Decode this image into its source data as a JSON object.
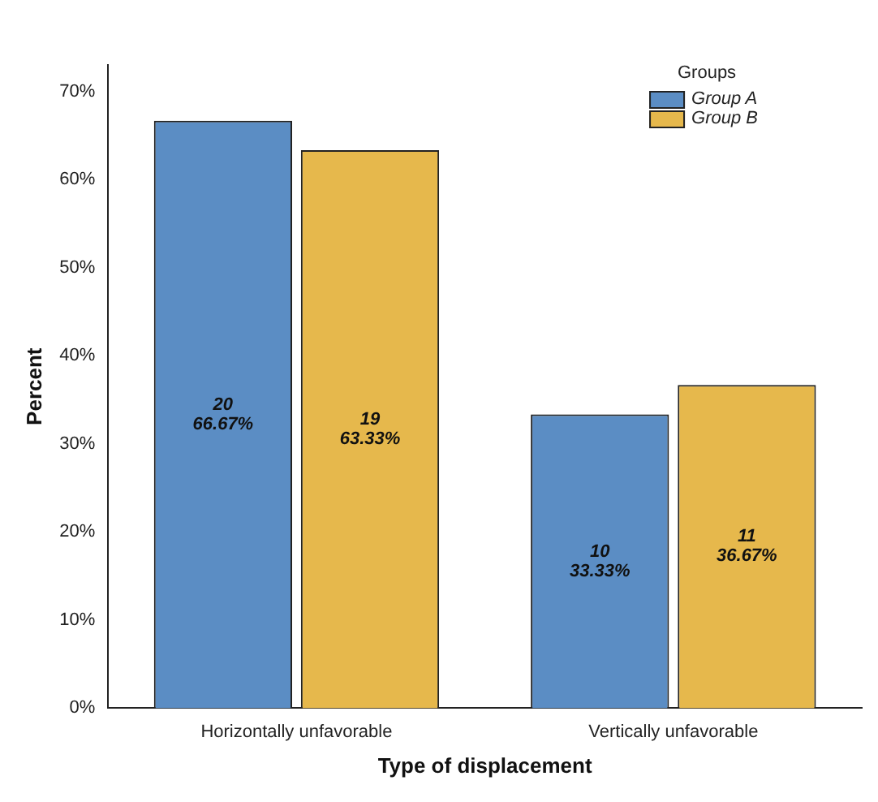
{
  "chart_data": {
    "type": "bar",
    "xlabel": "Type of displacement",
    "ylabel": "Percent",
    "legend_title": "Groups",
    "legend": "top right",
    "categories": [
      "Horizontally unfavorable",
      "Vertically unfavorable"
    ],
    "series": [
      {
        "name": "Group A",
        "color": "#5b8dc4",
        "values": [
          66.67,
          33.33
        ],
        "value_labels": [
          "20\n66.67%",
          "10\n33.33%"
        ]
      },
      {
        "name": "Group B",
        "color": "#e6b84c",
        "values": [
          63.33,
          36.67
        ],
        "value_labels": [
          "19\n63.33%",
          "11\n36.67%"
        ]
      }
    ],
    "ylim": [
      0,
      73
    ],
    "yticks": [
      {
        "value": 0,
        "label": "0%"
      },
      {
        "value": 10,
        "label": "10%"
      },
      {
        "value": 20,
        "label": "20%"
      },
      {
        "value": 30,
        "label": "30%"
      },
      {
        "value": 40,
        "label": "40%"
      },
      {
        "value": 50,
        "label": "50%"
      },
      {
        "value": 60,
        "label": "60%"
      },
      {
        "value": 70,
        "label": "70%"
      }
    ],
    "grid": false
  }
}
